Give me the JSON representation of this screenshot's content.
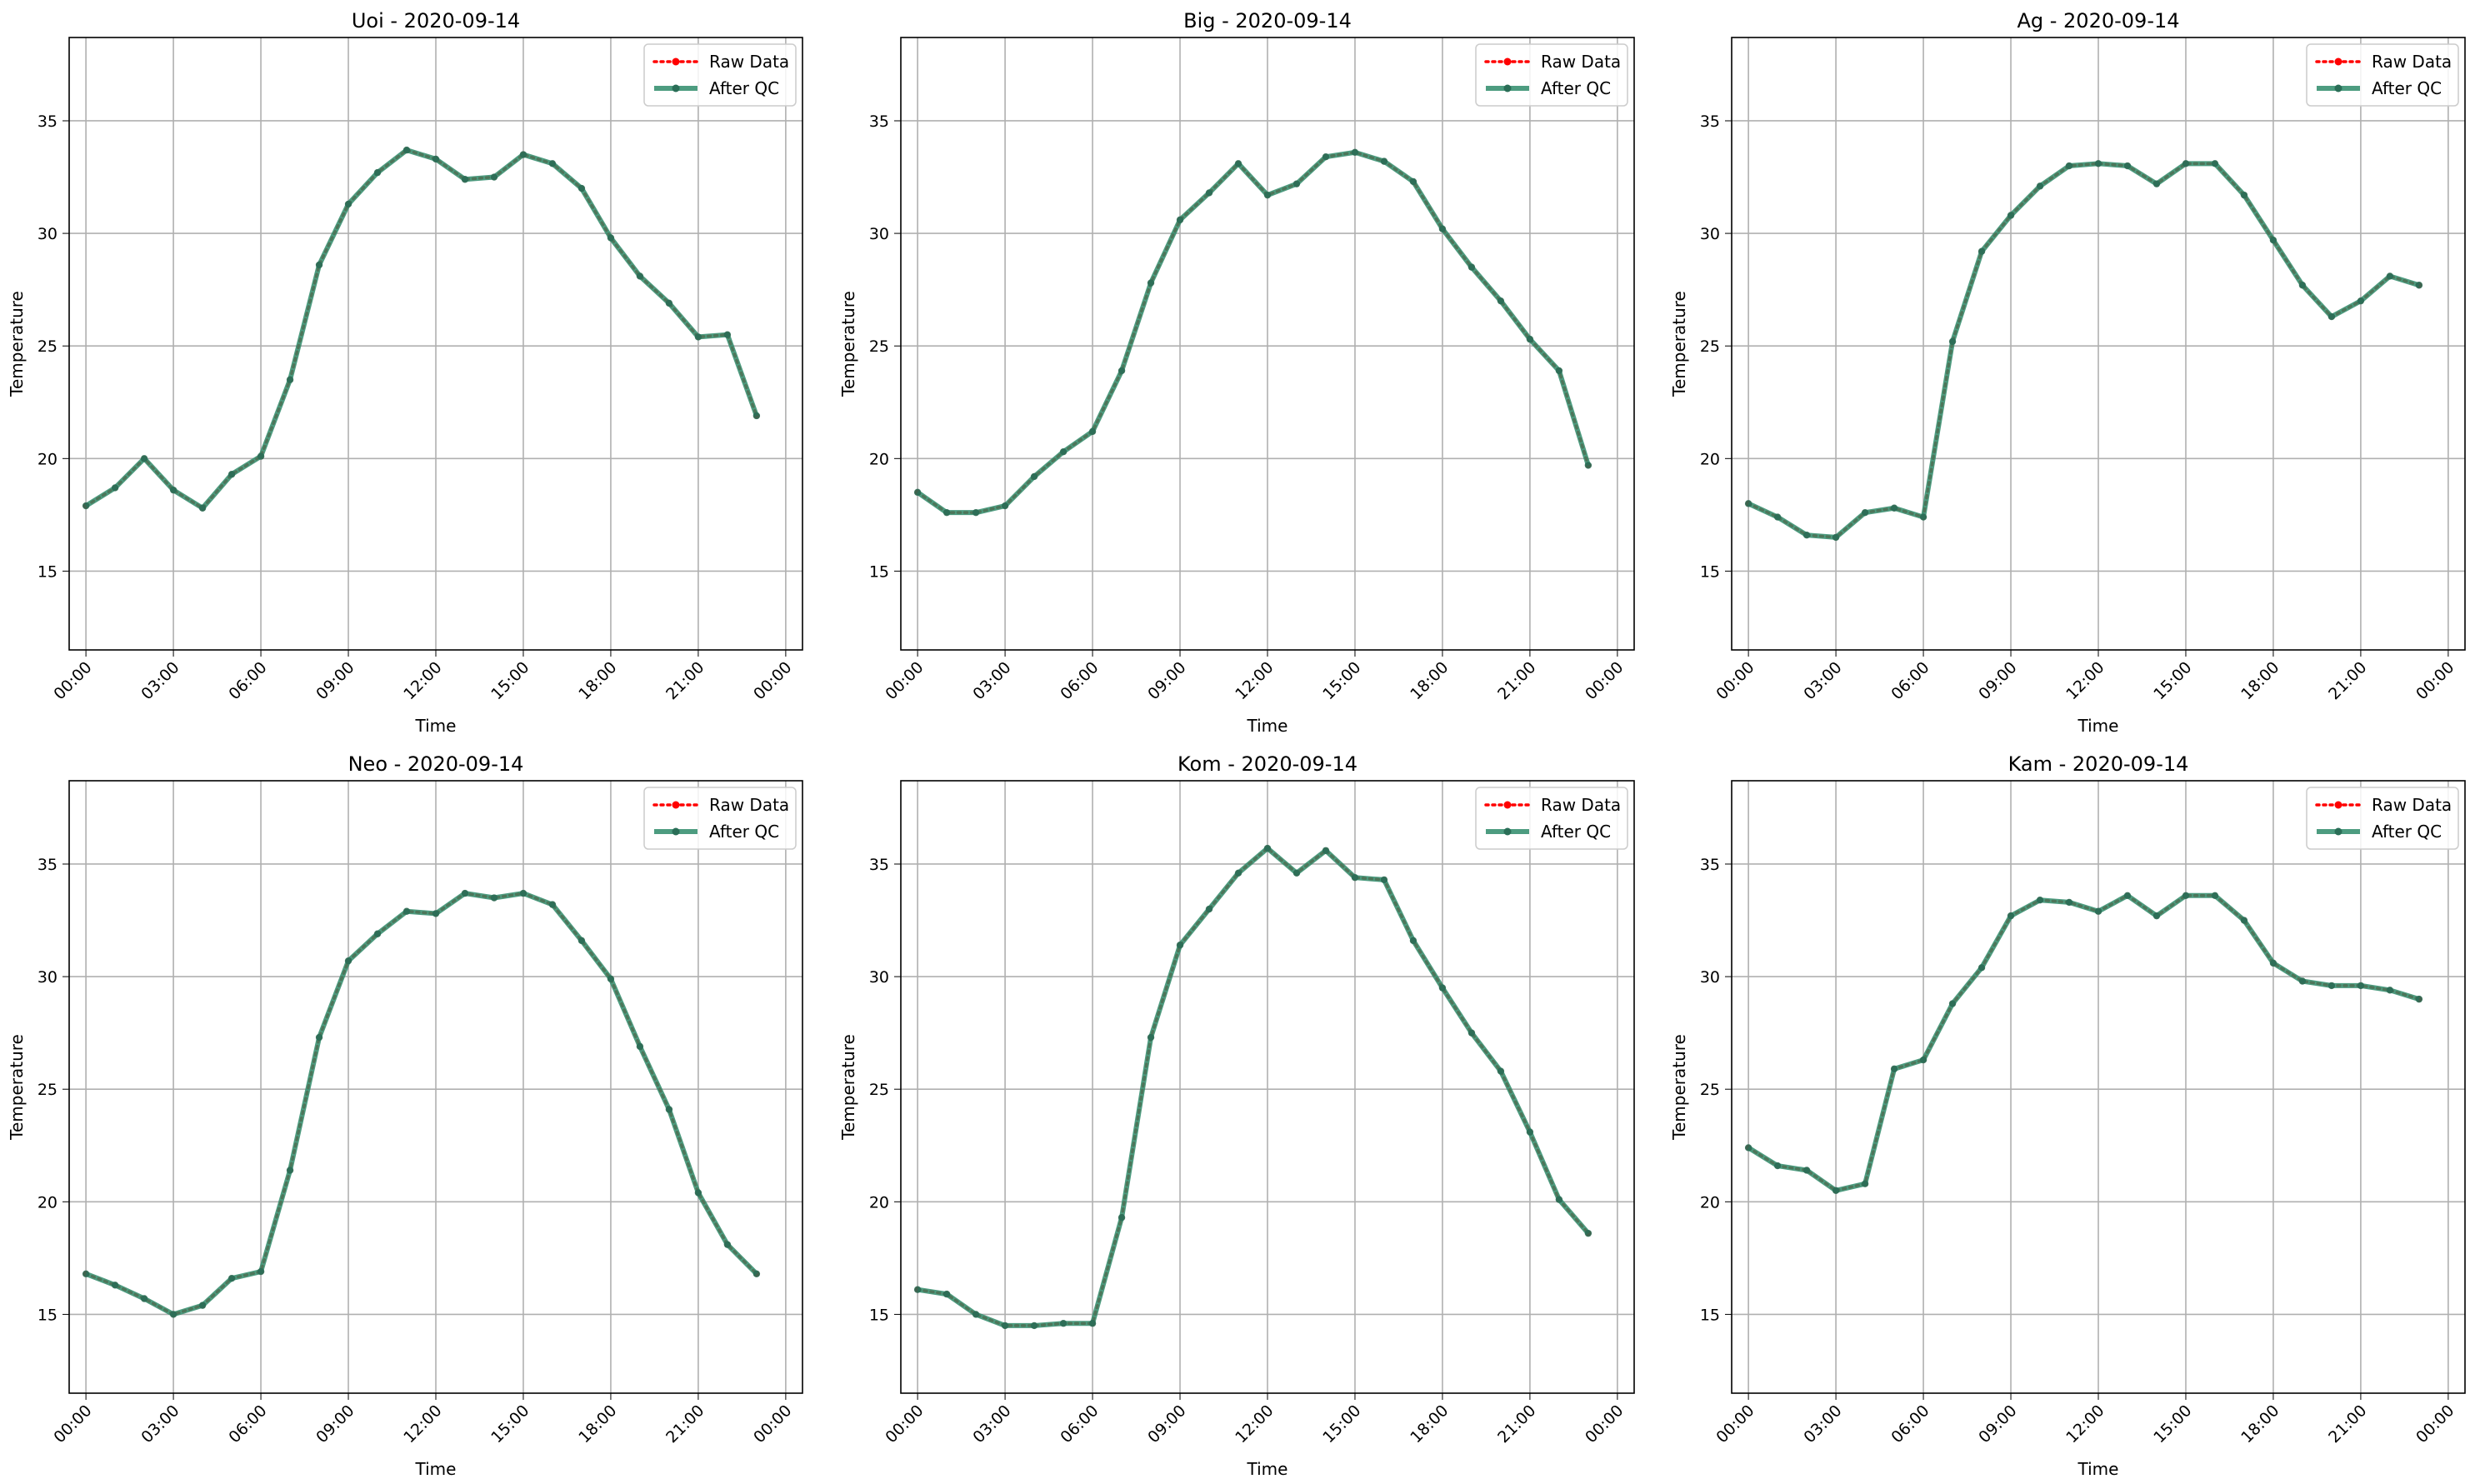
{
  "chart_data": [
    {
      "type": "line",
      "title": "Uoi - 2020-09-14",
      "xlabel": "Time",
      "ylabel": "Temperature",
      "x": [
        "00:00",
        "01:00",
        "02:00",
        "03:00",
        "04:00",
        "05:00",
        "06:00",
        "07:00",
        "08:00",
        "09:00",
        "10:00",
        "11:00",
        "12:00",
        "13:00",
        "14:00",
        "15:00",
        "16:00",
        "17:00",
        "18:00",
        "19:00",
        "20:00",
        "21:00",
        "22:00",
        "23:00"
      ],
      "xticks": [
        "00:00",
        "03:00",
        "06:00",
        "09:00",
        "12:00",
        "15:00",
        "18:00",
        "21:00",
        "00:00"
      ],
      "ylim": [
        11.5,
        38.7
      ],
      "yticks": [
        15,
        20,
        25,
        30,
        35
      ],
      "grid": true,
      "legend_position": "top-right",
      "series": [
        {
          "name": "Raw Data",
          "color": "#ff0000",
          "style": "dotted",
          "values": [
            17.9,
            18.7,
            20.0,
            18.6,
            17.8,
            19.3,
            20.1,
            23.5,
            28.6,
            31.3,
            32.7,
            33.7,
            33.3,
            32.4,
            32.5,
            33.5,
            33.1,
            32.0,
            29.8,
            28.1,
            26.9,
            25.4,
            25.5,
            21.9
          ]
        },
        {
          "name": "After QC",
          "color": "#2e8b6a",
          "style": "solid",
          "values": [
            17.9,
            18.7,
            20.0,
            18.6,
            17.8,
            19.3,
            20.1,
            23.5,
            28.6,
            31.3,
            32.7,
            33.7,
            33.3,
            32.4,
            32.5,
            33.5,
            33.1,
            32.0,
            29.8,
            28.1,
            26.9,
            25.4,
            25.5,
            21.9
          ]
        }
      ]
    },
    {
      "type": "line",
      "title": "Big - 2020-09-14",
      "xlabel": "Time",
      "ylabel": "Temperature",
      "x": [
        "00:00",
        "01:00",
        "02:00",
        "03:00",
        "04:00",
        "05:00",
        "06:00",
        "07:00",
        "08:00",
        "09:00",
        "10:00",
        "11:00",
        "12:00",
        "13:00",
        "14:00",
        "15:00",
        "16:00",
        "17:00",
        "18:00",
        "19:00",
        "20:00",
        "21:00",
        "22:00",
        "23:00"
      ],
      "xticks": [
        "00:00",
        "03:00",
        "06:00",
        "09:00",
        "12:00",
        "15:00",
        "18:00",
        "21:00",
        "00:00"
      ],
      "ylim": [
        11.5,
        38.7
      ],
      "yticks": [
        15,
        20,
        25,
        30,
        35
      ],
      "grid": true,
      "legend_position": "top-right",
      "series": [
        {
          "name": "Raw Data",
          "color": "#ff0000",
          "style": "dotted",
          "values": [
            18.5,
            17.6,
            17.6,
            17.9,
            19.2,
            20.3,
            21.2,
            23.9,
            27.8,
            30.6,
            31.8,
            33.1,
            31.7,
            32.2,
            33.4,
            33.6,
            33.2,
            32.3,
            30.2,
            28.5,
            27.0,
            25.3,
            23.9,
            19.7
          ]
        },
        {
          "name": "After QC",
          "color": "#2e8b6a",
          "style": "solid",
          "values": [
            18.5,
            17.6,
            17.6,
            17.9,
            19.2,
            20.3,
            21.2,
            23.9,
            27.8,
            30.6,
            31.8,
            33.1,
            31.7,
            32.2,
            33.4,
            33.6,
            33.2,
            32.3,
            30.2,
            28.5,
            27.0,
            25.3,
            23.9,
            19.7
          ]
        }
      ]
    },
    {
      "type": "line",
      "title": "Ag - 2020-09-14",
      "xlabel": "Time",
      "ylabel": "Temperature",
      "x": [
        "00:00",
        "01:00",
        "02:00",
        "03:00",
        "04:00",
        "05:00",
        "06:00",
        "07:00",
        "08:00",
        "09:00",
        "10:00",
        "11:00",
        "12:00",
        "13:00",
        "14:00",
        "15:00",
        "16:00",
        "17:00",
        "18:00",
        "19:00",
        "20:00",
        "21:00",
        "22:00",
        "23:00"
      ],
      "xticks": [
        "00:00",
        "03:00",
        "06:00",
        "09:00",
        "12:00",
        "15:00",
        "18:00",
        "21:00",
        "00:00"
      ],
      "ylim": [
        11.5,
        38.7
      ],
      "yticks": [
        15,
        20,
        25,
        30,
        35
      ],
      "grid": true,
      "legend_position": "top-right",
      "series": [
        {
          "name": "Raw Data",
          "color": "#ff0000",
          "style": "dotted",
          "values": [
            18.0,
            17.4,
            16.6,
            16.5,
            17.6,
            17.8,
            17.4,
            25.2,
            29.2,
            30.8,
            32.1,
            33.0,
            33.1,
            33.0,
            32.2,
            33.1,
            33.1,
            31.7,
            29.7,
            27.7,
            26.3,
            27.0,
            28.1,
            27.7
          ]
        },
        {
          "name": "After QC",
          "color": "#2e8b6a",
          "style": "solid",
          "values": [
            18.0,
            17.4,
            16.6,
            16.5,
            17.6,
            17.8,
            17.4,
            25.2,
            29.2,
            30.8,
            32.1,
            33.0,
            33.1,
            33.0,
            32.2,
            33.1,
            33.1,
            31.7,
            29.7,
            27.7,
            26.3,
            27.0,
            28.1,
            27.7
          ]
        }
      ]
    },
    {
      "type": "line",
      "title": "Neo - 2020-09-14",
      "xlabel": "Time",
      "ylabel": "Temperature",
      "x": [
        "00:00",
        "01:00",
        "02:00",
        "03:00",
        "04:00",
        "05:00",
        "06:00",
        "07:00",
        "08:00",
        "09:00",
        "10:00",
        "11:00",
        "12:00",
        "13:00",
        "14:00",
        "15:00",
        "16:00",
        "17:00",
        "18:00",
        "19:00",
        "20:00",
        "21:00",
        "22:00",
        "23:00"
      ],
      "xticks": [
        "00:00",
        "03:00",
        "06:00",
        "09:00",
        "12:00",
        "15:00",
        "18:00",
        "21:00",
        "00:00"
      ],
      "ylim": [
        11.5,
        38.7
      ],
      "yticks": [
        15,
        20,
        25,
        30,
        35
      ],
      "grid": true,
      "legend_position": "top-right",
      "series": [
        {
          "name": "Raw Data",
          "color": "#ff0000",
          "style": "dotted",
          "values": [
            16.8,
            16.3,
            15.7,
            15.0,
            15.4,
            16.6,
            16.9,
            21.4,
            27.3,
            30.7,
            31.9,
            32.9,
            32.8,
            33.7,
            33.5,
            33.7,
            33.2,
            31.6,
            29.9,
            26.9,
            24.1,
            20.4,
            18.1,
            16.8
          ]
        },
        {
          "name": "After QC",
          "color": "#2e8b6a",
          "style": "solid",
          "values": [
            16.8,
            16.3,
            15.7,
            15.0,
            15.4,
            16.6,
            16.9,
            21.4,
            27.3,
            30.7,
            31.9,
            32.9,
            32.8,
            33.7,
            33.5,
            33.7,
            33.2,
            31.6,
            29.9,
            26.9,
            24.1,
            20.4,
            18.1,
            16.8
          ]
        }
      ]
    },
    {
      "type": "line",
      "title": "Kom - 2020-09-14",
      "xlabel": "Time",
      "ylabel": "Temperature",
      "x": [
        "00:00",
        "01:00",
        "02:00",
        "03:00",
        "04:00",
        "05:00",
        "06:00",
        "07:00",
        "08:00",
        "09:00",
        "10:00",
        "11:00",
        "12:00",
        "13:00",
        "14:00",
        "15:00",
        "16:00",
        "17:00",
        "18:00",
        "19:00",
        "20:00",
        "21:00",
        "22:00",
        "23:00"
      ],
      "xticks": [
        "00:00",
        "03:00",
        "06:00",
        "09:00",
        "12:00",
        "15:00",
        "18:00",
        "21:00",
        "00:00"
      ],
      "ylim": [
        11.5,
        38.7
      ],
      "yticks": [
        15,
        20,
        25,
        30,
        35
      ],
      "grid": true,
      "legend_position": "top-right",
      "series": [
        {
          "name": "Raw Data",
          "color": "#ff0000",
          "style": "dotted",
          "values": [
            16.1,
            15.9,
            15.0,
            14.5,
            14.5,
            14.6,
            14.6,
            19.3,
            27.3,
            31.4,
            33.0,
            34.6,
            35.7,
            34.6,
            35.6,
            34.4,
            34.3,
            31.6,
            29.5,
            27.5,
            25.8,
            23.1,
            20.1,
            18.6
          ]
        },
        {
          "name": "After QC",
          "color": "#2e8b6a",
          "style": "solid",
          "values": [
            16.1,
            15.9,
            15.0,
            14.5,
            14.5,
            14.6,
            14.6,
            19.3,
            27.3,
            31.4,
            33.0,
            34.6,
            35.7,
            34.6,
            35.6,
            34.4,
            34.3,
            31.6,
            29.5,
            27.5,
            25.8,
            23.1,
            20.1,
            18.6
          ]
        }
      ]
    },
    {
      "type": "line",
      "title": "Kam - 2020-09-14",
      "xlabel": "Time",
      "ylabel": "Temperature",
      "x": [
        "00:00",
        "01:00",
        "02:00",
        "03:00",
        "04:00",
        "05:00",
        "06:00",
        "07:00",
        "08:00",
        "09:00",
        "10:00",
        "11:00",
        "12:00",
        "13:00",
        "14:00",
        "15:00",
        "16:00",
        "17:00",
        "18:00",
        "19:00",
        "20:00",
        "21:00",
        "22:00",
        "23:00"
      ],
      "xticks": [
        "00:00",
        "03:00",
        "06:00",
        "09:00",
        "12:00",
        "15:00",
        "18:00",
        "21:00",
        "00:00"
      ],
      "ylim": [
        11.5,
        38.7
      ],
      "yticks": [
        15,
        20,
        25,
        30,
        35
      ],
      "grid": true,
      "legend_position": "top-right",
      "series": [
        {
          "name": "Raw Data",
          "color": "#ff0000",
          "style": "dotted",
          "values": [
            22.4,
            21.6,
            21.4,
            20.5,
            20.8,
            25.9,
            26.3,
            28.8,
            30.4,
            32.7,
            33.4,
            33.3,
            32.9,
            33.6,
            32.7,
            33.6,
            33.6,
            32.5,
            30.6,
            29.8,
            29.6,
            29.6,
            29.4,
            29.0
          ]
        },
        {
          "name": "After QC",
          "color": "#2e8b6a",
          "style": "solid",
          "values": [
            22.4,
            21.6,
            21.4,
            20.5,
            20.8,
            25.9,
            26.3,
            28.8,
            30.4,
            32.7,
            33.4,
            33.3,
            32.9,
            33.6,
            32.7,
            33.6,
            33.6,
            32.5,
            30.6,
            29.8,
            29.6,
            29.6,
            29.4,
            29.0
          ]
        }
      ]
    }
  ]
}
